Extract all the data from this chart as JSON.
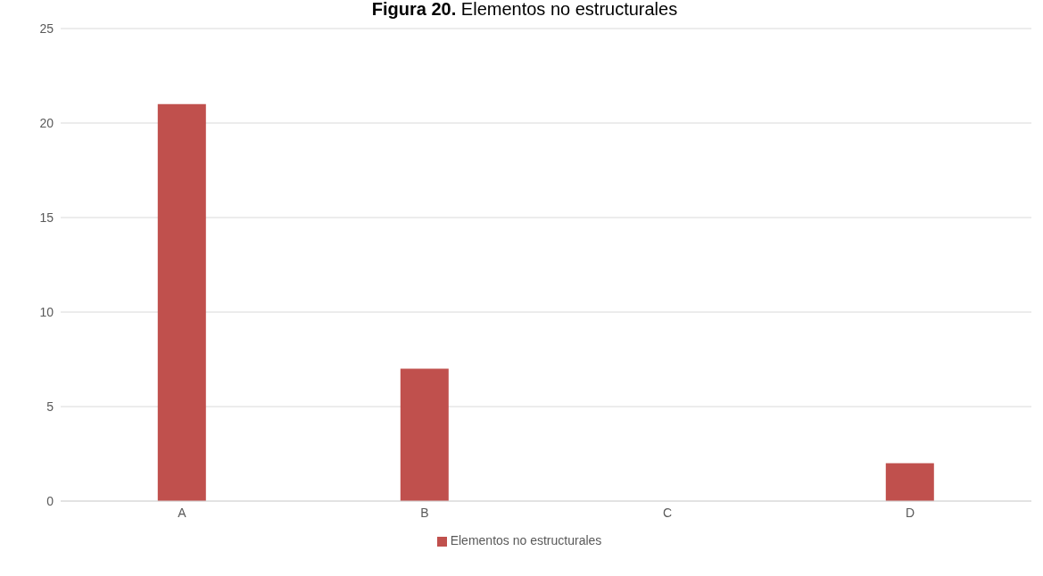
{
  "chart_data": {
    "type": "bar",
    "title": "Figura 20. Elementos no estructurales",
    "categories": [
      "A",
      "B",
      "C",
      "D"
    ],
    "series": [
      {
        "name": "Elementos no estructurales",
        "color": "#c0504d",
        "values": [
          21,
          7,
          0,
          2
        ]
      }
    ],
    "ylim": [
      0,
      25
    ],
    "yticks": [
      0,
      5,
      10,
      15,
      20,
      25
    ],
    "grid": "y",
    "legend": "bottom"
  }
}
